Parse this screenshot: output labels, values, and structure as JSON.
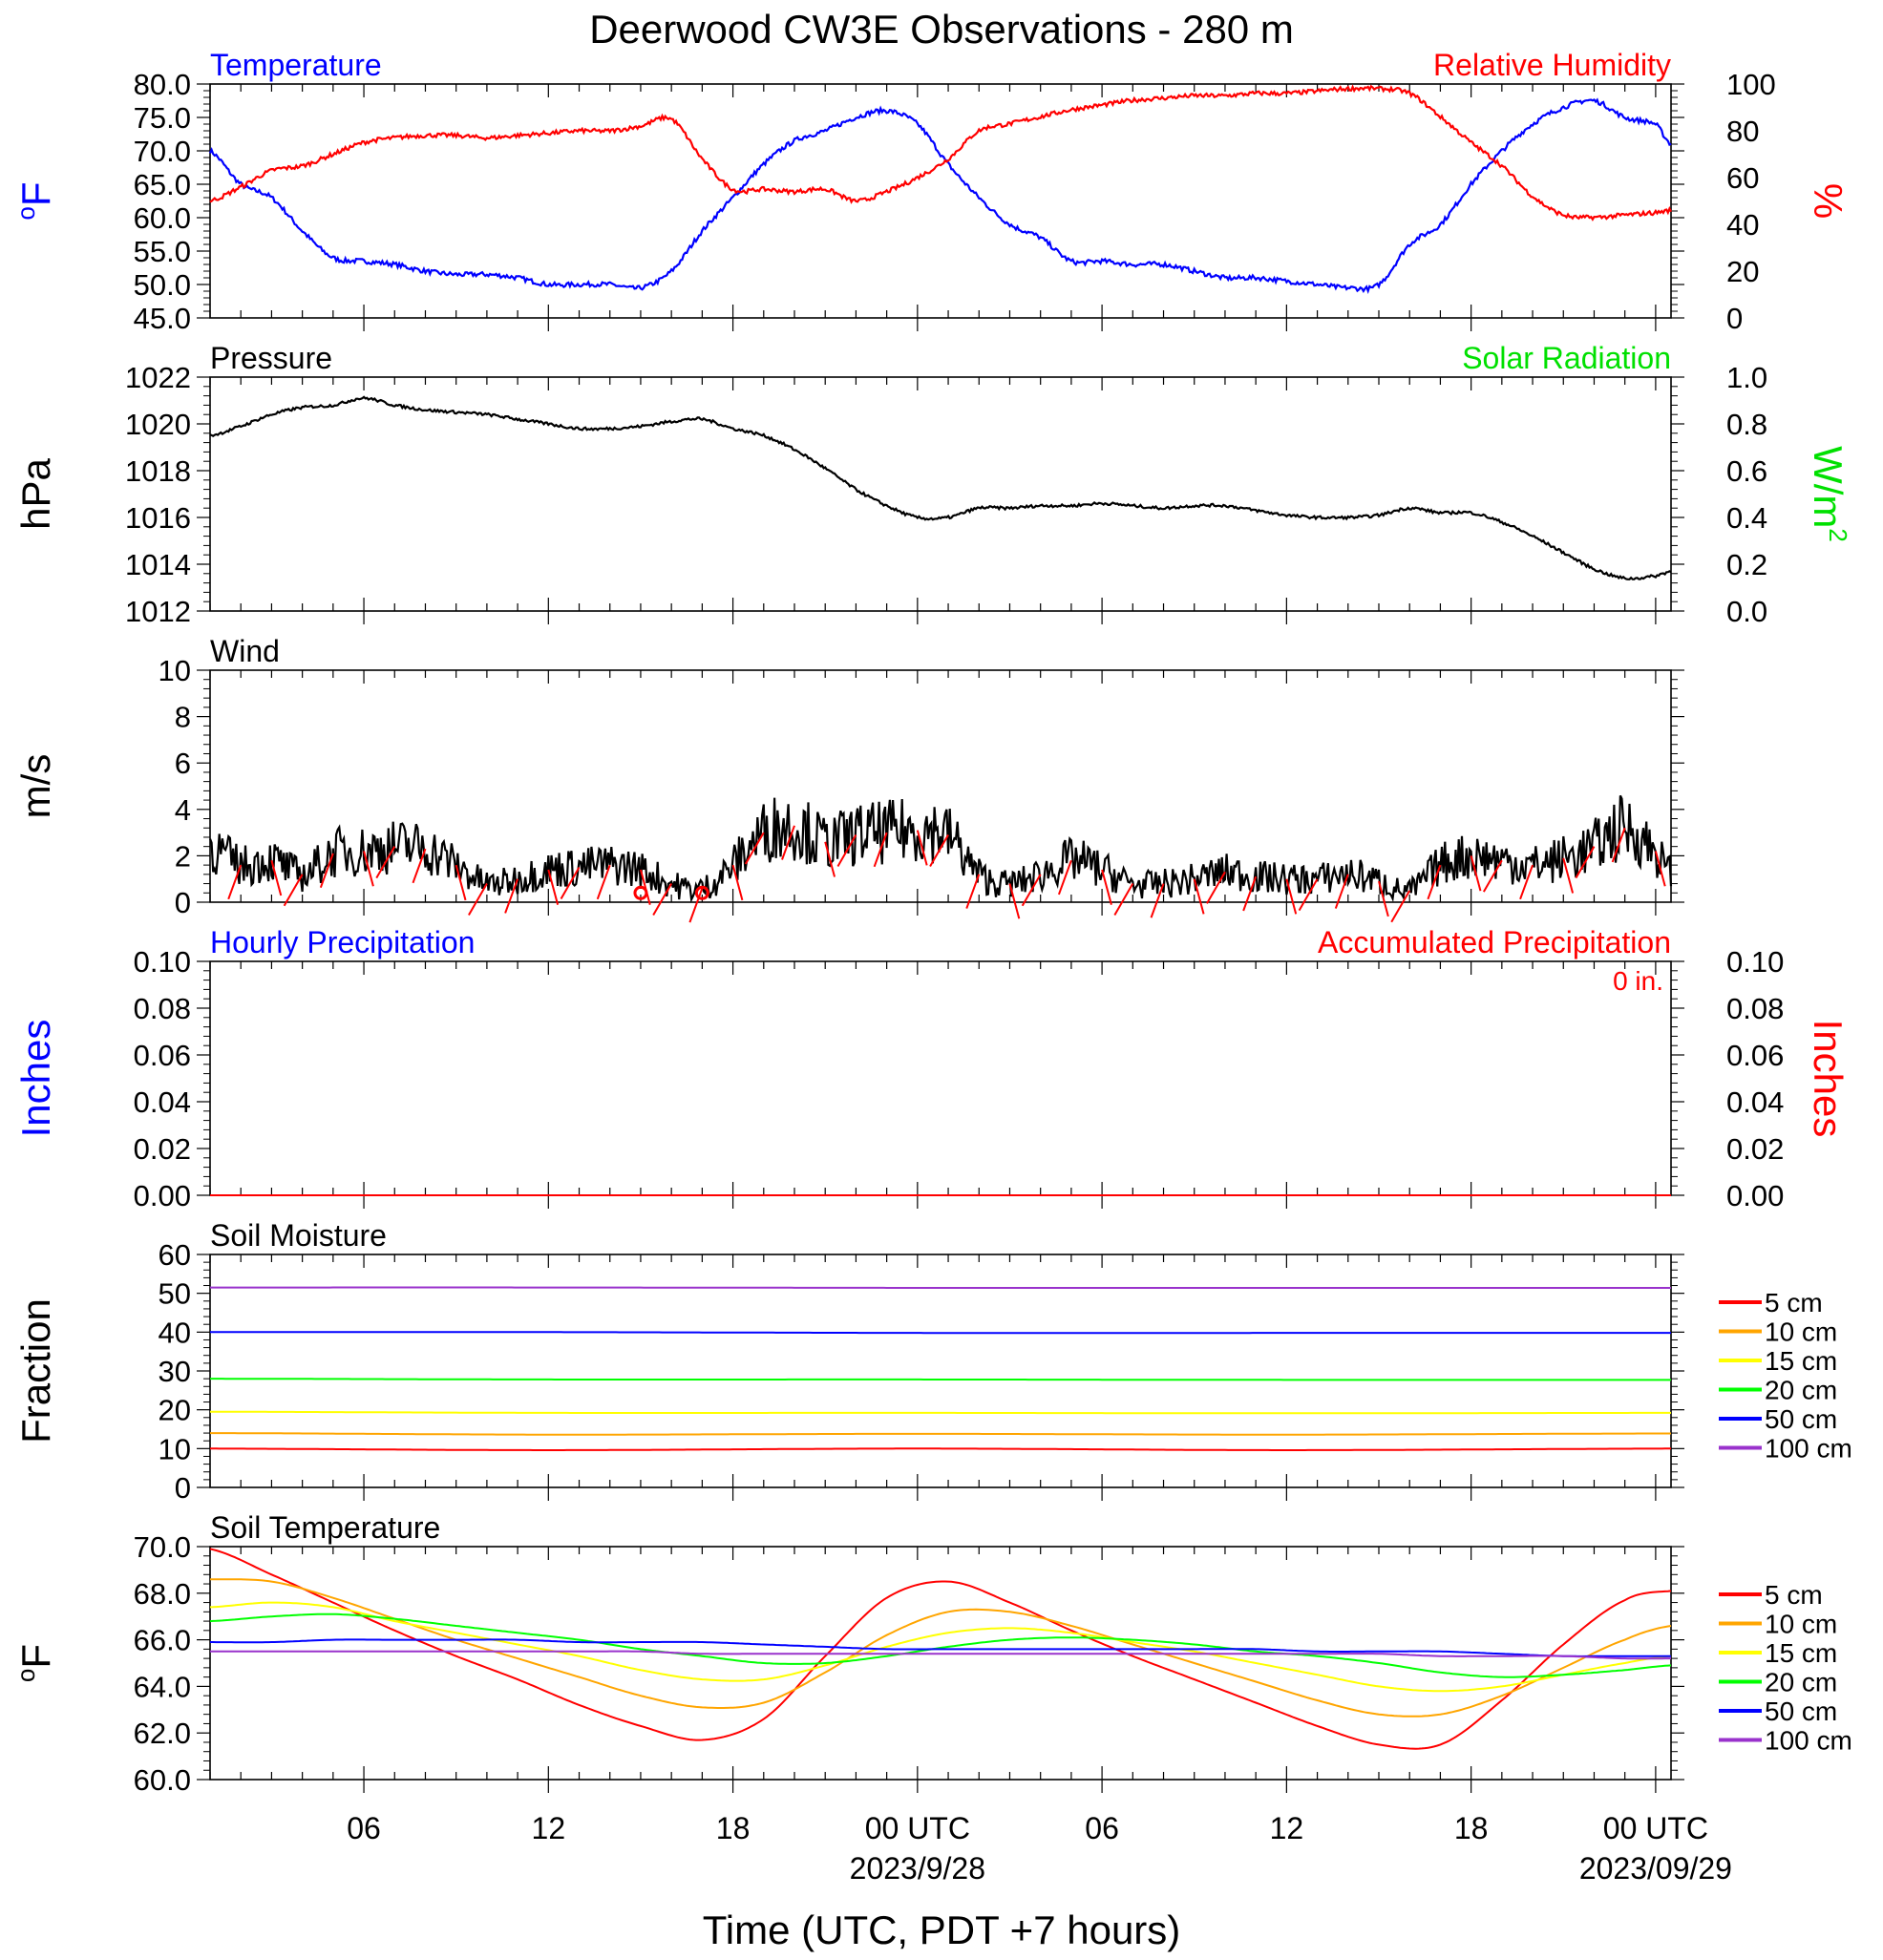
{
  "title": "Deerwood CW3E Observations - 280 m",
  "xaxis": {
    "label": "Time (UTC, PDT +7 hours)",
    "ticks": [
      {
        "h": 6,
        "label": "06",
        "sub": ""
      },
      {
        "h": 12,
        "label": "12",
        "sub": ""
      },
      {
        "h": 18,
        "label": "18",
        "sub": ""
      },
      {
        "h": 24,
        "label": "00 UTC",
        "sub": "2023/9/28"
      },
      {
        "h": 30,
        "label": "06",
        "sub": ""
      },
      {
        "h": 36,
        "label": "12",
        "sub": ""
      },
      {
        "h": 42,
        "label": "18",
        "sub": ""
      },
      {
        "h": 48,
        "label": "00 UTC",
        "sub": "2023/09/29"
      }
    ]
  },
  "chart_data": [
    {
      "type": "line",
      "panel": "temperature_humidity",
      "left_title": "Temperature",
      "right_title": "Relative Humidity",
      "left_ylabel": "oF",
      "right_ylabel": "%",
      "left_ylim": [
        45,
        80
      ],
      "right_ylim": [
        0,
        100
      ],
      "left_ticks": [
        "80.0",
        "75.0",
        "70.0",
        "65.0",
        "60.0",
        "55.0",
        "50.0",
        "45.0"
      ],
      "right_ticks": [
        "100",
        "80",
        "60",
        "40",
        "20",
        "0"
      ],
      "x_hours": [
        1,
        2,
        3,
        4,
        5,
        6,
        7,
        8,
        9,
        10,
        11,
        12,
        13,
        14,
        15,
        16,
        17,
        18,
        19,
        20,
        21,
        22,
        23,
        24,
        25,
        26,
        27,
        28,
        29,
        30,
        31,
        32,
        33,
        34,
        35,
        36,
        37,
        38,
        39,
        40,
        41,
        42,
        43,
        44,
        45,
        46,
        47,
        48,
        48.5
      ],
      "series": [
        {
          "name": "Temperature",
          "color": "#0000ff",
          "axis": "left",
          "values": [
            70,
            65,
            63,
            58,
            54,
            53.5,
            53,
            52,
            51.5,
            51.5,
            51,
            50,
            50,
            50,
            49.5,
            52,
            58,
            63,
            68,
            71.5,
            73,
            75,
            76,
            74,
            68,
            63,
            59,
            57,
            53.5,
            53.5,
            53,
            53,
            52,
            51,
            51,
            50.5,
            50,
            49.5,
            50,
            56,
            59,
            65,
            70,
            74,
            76.5,
            77.5,
            75,
            74,
            71
          ]
        },
        {
          "name": "Relative Humidity",
          "color": "#ff0000",
          "axis": "right",
          "values": [
            50,
            56,
            63,
            65,
            70,
            75,
            77,
            78,
            78,
            77,
            78,
            79,
            80,
            80,
            82,
            85,
            68,
            55,
            55,
            54,
            55,
            50,
            54,
            60,
            68,
            80,
            83,
            86,
            89,
            91,
            93,
            94,
            95,
            95,
            96,
            96,
            97,
            98,
            98,
            96,
            86,
            75,
            65,
            52,
            44,
            43,
            44,
            45,
            46
          ]
        }
      ]
    },
    {
      "type": "line",
      "panel": "pressure_solar",
      "left_title": "Pressure",
      "right_title": "Solar Radiation",
      "left_ylabel": "hPa",
      "right_ylabel": "W/m2",
      "left_ylim": [
        1012,
        1022
      ],
      "right_ylim": [
        0,
        1
      ],
      "left_ticks": [
        "1022",
        "1020",
        "1018",
        "1016",
        "1014",
        "1012"
      ],
      "right_ticks": [
        "1.0",
        "0.8",
        "0.6",
        "0.4",
        "0.2",
        "0.0"
      ],
      "x_hours": [
        1,
        2,
        3,
        4,
        5,
        6,
        7,
        8,
        9,
        10,
        11,
        12,
        13,
        14,
        15,
        16,
        17,
        18,
        19,
        20,
        21,
        22,
        23,
        24,
        25,
        26,
        27,
        28,
        29,
        30,
        31,
        32,
        33,
        34,
        35,
        36,
        37,
        38,
        39,
        40,
        41,
        42,
        43,
        44,
        45,
        46,
        47,
        48,
        48.5
      ],
      "series": [
        {
          "name": "Pressure",
          "color": "#000000",
          "axis": "left",
          "values": [
            1019.5,
            1019.9,
            1020.4,
            1020.7,
            1020.8,
            1021.1,
            1020.8,
            1020.6,
            1020.5,
            1020.4,
            1020.2,
            1020.0,
            1019.8,
            1019.8,
            1019.9,
            1020.1,
            1020.2,
            1019.8,
            1019.5,
            1018.9,
            1018.1,
            1017.2,
            1016.5,
            1016.0,
            1016.0,
            1016.4,
            1016.4,
            1016.5,
            1016.5,
            1016.6,
            1016.5,
            1016.4,
            1016.5,
            1016.5,
            1016.3,
            1016.1,
            1016.0,
            1016.0,
            1016.1,
            1016.4,
            1016.2,
            1016.2,
            1015.8,
            1015.2,
            1014.5,
            1013.8,
            1013.4,
            1013.5,
            1013.7
          ]
        }
      ]
    },
    {
      "type": "line",
      "panel": "wind",
      "left_title": "Wind",
      "left_ylabel": "m/s",
      "left_ylim": [
        0,
        10
      ],
      "left_ticks": [
        "10",
        "8",
        "6",
        "4",
        "2",
        "0"
      ],
      "x_hours": [
        1,
        2,
        3,
        4,
        5,
        6,
        7,
        8,
        9,
        10,
        11,
        12,
        13,
        14,
        15,
        16,
        17,
        18,
        19,
        20,
        21,
        22,
        23,
        24,
        25,
        26,
        27,
        28,
        29,
        30,
        31,
        32,
        33,
        34,
        35,
        36,
        37,
        38,
        39,
        40,
        41,
        42,
        43,
        44,
        45,
        46,
        47,
        48,
        48.5
      ],
      "series": [
        {
          "name": "Wind speed",
          "color": "#000000",
          "axis": "left",
          "values": [
            2.4,
            1.6,
            1.8,
            1.2,
            2.1,
            2.2,
            2.4,
            2.3,
            1.6,
            0.8,
            1.0,
            1.4,
            1.5,
            1.6,
            1.4,
            0.8,
            0.6,
            1.6,
            3.0,
            3.3,
            2.6,
            2.9,
            3.0,
            3.1,
            2.9,
            1.2,
            0.8,
            1.2,
            1.8,
            1.4,
            0.8,
            0.8,
            1.0,
            1.3,
            1.1,
            1.0,
            1.0,
            1.2,
            0.9,
            0.5,
            1.6,
            2.0,
            1.8,
            1.6,
            1.9,
            2.4,
            3.2,
            2.2,
            1.2
          ]
        }
      ],
      "barbs_hours": [
        2,
        3,
        4,
        5,
        6,
        7,
        8,
        9,
        10,
        11,
        12,
        13,
        14,
        15,
        16,
        17,
        18,
        19,
        20,
        21,
        22,
        23,
        24,
        25,
        26,
        27,
        28,
        29,
        30,
        31,
        32,
        33,
        34,
        35,
        36,
        37,
        38,
        39,
        40,
        41,
        42,
        43,
        44,
        45,
        46,
        47,
        48
      ],
      "calm_hours": [
        15,
        17
      ]
    },
    {
      "type": "line",
      "panel": "precipitation",
      "left_title": "Hourly Precipitation",
      "right_title": "Accumulated Precipitation",
      "annotation": "0 in.",
      "left_ylabel": "Inches",
      "right_ylabel": "Inches",
      "left_ylim": [
        0,
        0.1
      ],
      "right_ylim": [
        0,
        0.1
      ],
      "left_ticks": [
        "0.10",
        "0.08",
        "0.06",
        "0.04",
        "0.02",
        "0.00"
      ],
      "right_ticks": [
        "0.10",
        "0.08",
        "0.06",
        "0.04",
        "0.02",
        "0.00"
      ],
      "x_hours": [
        1,
        48.5
      ],
      "series": [
        {
          "name": "Hourly Precipitation",
          "color": "#0000ff",
          "axis": "left",
          "values": [
            0,
            0
          ]
        },
        {
          "name": "Accumulated Precipitation",
          "color": "#ff0000",
          "axis": "right",
          "values": [
            0,
            0
          ]
        }
      ]
    },
    {
      "type": "line",
      "panel": "soil_moisture",
      "left_title": "Soil Moisture",
      "left_ylabel": "Fraction",
      "left_ylim": [
        0,
        60
      ],
      "left_ticks": [
        "60",
        "50",
        "40",
        "30",
        "20",
        "10",
        "0"
      ],
      "x_hours": [
        1,
        12,
        24,
        36,
        48.5
      ],
      "series": [
        {
          "name": "5 cm",
          "color": "#ff0000",
          "values": [
            10,
            9.6,
            10,
            9.6,
            10
          ]
        },
        {
          "name": "10 cm",
          "color": "#ffa500",
          "values": [
            14,
            13.6,
            13.8,
            13.6,
            13.9
          ]
        },
        {
          "name": "15 cm",
          "color": "#ffff00",
          "values": [
            19.5,
            19.2,
            19.2,
            19.1,
            19.2
          ]
        },
        {
          "name": "20 cm",
          "color": "#00ff00",
          "values": [
            28,
            27.8,
            27.8,
            27.7,
            27.7
          ]
        },
        {
          "name": "50 cm",
          "color": "#0000ff",
          "values": [
            40,
            40,
            39.8,
            39.8,
            39.8
          ]
        },
        {
          "name": "100 cm",
          "color": "#9932cc",
          "values": [
            51.5,
            51.5,
            51.4,
            51.4,
            51.4
          ]
        }
      ]
    },
    {
      "type": "line",
      "panel": "soil_temperature",
      "left_title": "Soil Temperature",
      "left_ylabel": "oF",
      "left_ylim": [
        60,
        70
      ],
      "left_ticks": [
        "70.0",
        "68.0",
        "66.0",
        "64.0",
        "62.0",
        "60.0"
      ],
      "x_hours": [
        1,
        3,
        5,
        7,
        9,
        11,
        13,
        15,
        17,
        19,
        21,
        23,
        25,
        27,
        29,
        31,
        33,
        35,
        37,
        39,
        41,
        43,
        45,
        47,
        48.5
      ],
      "series": [
        {
          "name": "5 cm",
          "color": "#ff0000",
          "values": [
            69.9,
            68.8,
            67.6,
            66.4,
            65.3,
            64.3,
            63.2,
            62.3,
            61.7,
            62.6,
            65.3,
            67.8,
            68.5,
            67.6,
            66.4,
            65.3,
            64.3,
            63.3,
            62.3,
            61.5,
            61.5,
            63.4,
            65.8,
            67.7,
            68.1
          ]
        },
        {
          "name": "10 cm",
          "color": "#ffa500",
          "values": [
            68.6,
            68.5,
            67.8,
            66.9,
            66.0,
            65.2,
            64.4,
            63.6,
            63.1,
            63.3,
            64.6,
            66.2,
            67.2,
            67.2,
            66.6,
            65.8,
            65.0,
            64.2,
            63.4,
            62.8,
            62.8,
            63.6,
            64.8,
            66.0,
            66.6
          ]
        },
        {
          "name": "15 cm",
          "color": "#ffff00",
          "values": [
            67.4,
            67.6,
            67.4,
            66.8,
            66.3,
            65.8,
            65.3,
            64.7,
            64.3,
            64.3,
            64.9,
            65.7,
            66.3,
            66.5,
            66.3,
            65.9,
            65.5,
            65.0,
            64.5,
            64.0,
            63.8,
            64.0,
            64.5,
            65.0,
            65.3
          ]
        },
        {
          "name": "20 cm",
          "color": "#00ff00",
          "values": [
            66.8,
            67.0,
            67.1,
            66.9,
            66.6,
            66.3,
            66.0,
            65.6,
            65.3,
            65.0,
            65.0,
            65.3,
            65.7,
            66.0,
            66.1,
            66.0,
            65.8,
            65.5,
            65.3,
            65.0,
            64.6,
            64.4,
            64.5,
            64.7,
            64.9
          ]
        },
        {
          "name": "50 cm",
          "color": "#0000ff",
          "values": [
            65.9,
            65.9,
            66.0,
            66.0,
            66.0,
            66.0,
            65.9,
            65.9,
            65.9,
            65.8,
            65.7,
            65.6,
            65.6,
            65.6,
            65.6,
            65.6,
            65.6,
            65.6,
            65.5,
            65.5,
            65.5,
            65.4,
            65.3,
            65.3,
            65.3
          ]
        },
        {
          "name": "100 cm",
          "color": "#9932cc",
          "values": [
            65.5,
            65.5,
            65.5,
            65.5,
            65.5,
            65.5,
            65.5,
            65.5,
            65.4,
            65.4,
            65.4,
            65.4,
            65.4,
            65.4,
            65.4,
            65.4,
            65.4,
            65.4,
            65.4,
            65.4,
            65.3,
            65.3,
            65.3,
            65.2,
            65.2
          ]
        }
      ]
    }
  ]
}
